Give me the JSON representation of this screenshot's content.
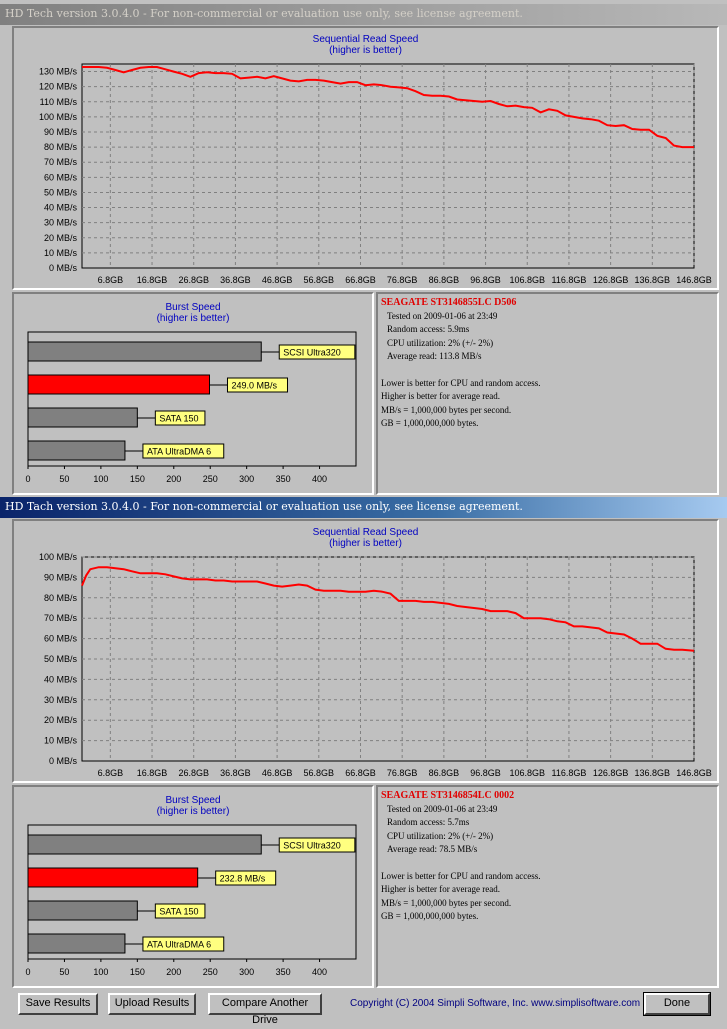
{
  "window1": {
    "title": "HD Tech version 3.0.4.0  - For non-commercial or evaluation use only, see license agreement.",
    "seq_title_1": "Sequential Read Speed",
    "seq_title_2": "(higher is better)",
    "burst_title_1": "Burst Speed",
    "burst_title_2": "(higher is better)",
    "info": {
      "drive": "SEAGATE ST3146855LC D506",
      "tested": "Tested on 2009-01-06 at 23:49",
      "random_access": "Random access: 5.9ms",
      "cpu": "CPU utilization: 2% (+/- 2%)",
      "average_read": "Average read: 113.8 MB/s",
      "note1": "Lower is better for CPU and random access.",
      "note2": "Higher is better for average read.",
      "note3": "MB/s = 1,000,000 bytes per second.",
      "note4": "GB = 1,000,000,000 bytes."
    }
  },
  "window2": {
    "title": "HD Tach version 3.0.4.0  - For non-commercial or evaluation use only, see license agreement.",
    "seq_title_1": "Sequential Read Speed",
    "seq_title_2": "(higher is better)",
    "burst_title_1": "Burst Speed",
    "burst_title_2": "(higher is better)",
    "info": {
      "drive": "SEAGATE ST3146854LC 0002",
      "tested": "Tested on 2009-01-06 at 23:49",
      "random_access": "Random access: 5.7ms",
      "cpu": "CPU utilization: 2% (+/- 2%)",
      "average_read": "Average read: 78.5 MB/s",
      "note1": "Lower is better for CPU and random access.",
      "note2": "Higher is better for average read.",
      "note3": "MB/s = 1,000,000 bytes per second.",
      "note4": "GB = 1,000,000,000 bytes."
    }
  },
  "buttons": {
    "save": "Save Results",
    "upload": "Upload Results",
    "compare": "Compare Another Drive",
    "done": "Done"
  },
  "copyright": "Copyright (C) 2004 Simpli Software, Inc. www.simplisoftware.com",
  "colors": {
    "series": "#ff0000",
    "title_blue": "#0000c0",
    "label_bg": "#ffff80",
    "bar_gray": "#808080",
    "bar_red": "#ff0000"
  },
  "chart_data": [
    {
      "type": "line",
      "title": "Sequential Read Speed",
      "subtitle": "(higher is better)",
      "xlabels": [
        "6.8GB",
        "16.8GB",
        "26.8GB",
        "36.8GB",
        "46.8GB",
        "56.8GB",
        "66.8GB",
        "76.8GB",
        "86.8GB",
        "96.8GB",
        "106.8GB",
        "116.8GB",
        "126.8GB",
        "136.8GB",
        "146.8GB"
      ],
      "yticks": [
        "0 MB/s",
        "10 MB/s",
        "20 MB/s",
        "30 MB/s",
        "40 MB/s",
        "50 MB/s",
        "60 MB/s",
        "70 MB/s",
        "80 MB/s",
        "90 MB/s",
        "100 MB/s",
        "110 MB/s",
        "120 MB/s",
        "130 MB/s"
      ],
      "ylim": [
        0,
        135
      ],
      "xlim": [
        0,
        146.8
      ],
      "grid": true,
      "series": [
        {
          "x": [
            0,
            2,
            4,
            6,
            8,
            10,
            12,
            14,
            16,
            18,
            20,
            22,
            24,
            26,
            28,
            30,
            32,
            34,
            36,
            38,
            40,
            42,
            44,
            46,
            48,
            50,
            52,
            54,
            56,
            58,
            60,
            62,
            64,
            66,
            68,
            70,
            72,
            74,
            76,
            78,
            80,
            82,
            84,
            86,
            88,
            90,
            92,
            94,
            96,
            98,
            100,
            102,
            104,
            106,
            108,
            110,
            112,
            114,
            116,
            118,
            120,
            122,
            124,
            126,
            128,
            130,
            132,
            134,
            136,
            138,
            140,
            142,
            144,
            146.8
          ],
          "y": [
            133,
            133,
            133,
            132.5,
            131,
            129.5,
            131,
            132.5,
            133,
            133,
            131.5,
            130,
            128.5,
            126.5,
            129,
            129.5,
            129,
            129,
            128.5,
            125.5,
            126,
            126.5,
            125.5,
            127,
            125.5,
            124,
            123.5,
            124.5,
            124.5,
            124,
            123,
            122,
            123,
            123,
            121,
            121.5,
            121,
            120,
            119.5,
            119,
            117,
            114.5,
            114,
            114,
            113.5,
            111.5,
            111,
            110.5,
            110,
            110.5,
            108.5,
            107,
            107.5,
            106.5,
            106,
            103,
            105,
            104,
            101,
            100,
            99,
            98.5,
            97.5,
            94.5,
            94,
            94.5,
            92,
            91.5,
            91.5,
            87.5,
            86,
            81,
            80,
            80
          ]
        }
      ]
    },
    {
      "type": "bar",
      "title": "Burst Speed",
      "subtitle": "(higher is better)",
      "categories": [
        "SCSI Ultra320",
        "249.0 MB/s",
        "SATA 150",
        "ATA UltraDMA 6"
      ],
      "values": [
        320,
        249,
        150,
        133
      ],
      "highlight": [
        false,
        true,
        false,
        false
      ],
      "xticks": [
        "0",
        "50",
        "100",
        "150",
        "200",
        "250",
        "300",
        "350",
        "400"
      ],
      "xlim": [
        0,
        450
      ]
    },
    {
      "type": "line",
      "title": "Sequential Read Speed",
      "subtitle": "(higher is better)",
      "xlabels": [
        "6.8GB",
        "16.8GB",
        "26.8GB",
        "36.8GB",
        "46.8GB",
        "56.8GB",
        "66.8GB",
        "76.8GB",
        "86.8GB",
        "96.8GB",
        "106.8GB",
        "116.8GB",
        "126.8GB",
        "136.8GB",
        "146.8GB"
      ],
      "yticks": [
        "0 MB/s",
        "10 MB/s",
        "20 MB/s",
        "30 MB/s",
        "40 MB/s",
        "50 MB/s",
        "60 MB/s",
        "70 MB/s",
        "80 MB/s",
        "90 MB/s",
        "100 MB/s"
      ],
      "ylim": [
        0,
        100
      ],
      "xlim": [
        0,
        146.8
      ],
      "grid": true,
      "series": [
        {
          "x": [
            0,
            1,
            2,
            4,
            6,
            8,
            10,
            12,
            14,
            16,
            18,
            20,
            22,
            24,
            26,
            28,
            30,
            32,
            34,
            36,
            38,
            40,
            42,
            44,
            46,
            48,
            50,
            52,
            54,
            56,
            58,
            60,
            62,
            64,
            66,
            68,
            70,
            72,
            74,
            76,
            78,
            80,
            82,
            84,
            86,
            88,
            90,
            92,
            94,
            96,
            98,
            100,
            102,
            104,
            106,
            108,
            110,
            112,
            114,
            116,
            118,
            120,
            122,
            124,
            126,
            128,
            130,
            132,
            134,
            136,
            138,
            140,
            142,
            144,
            146.8
          ],
          "y": [
            86,
            91,
            94,
            95,
            95,
            94.5,
            94,
            93,
            92,
            92,
            92,
            91.5,
            90.5,
            89.5,
            89,
            89,
            89,
            88.5,
            88.5,
            88,
            88,
            88,
            88,
            87,
            86,
            85.5,
            86,
            86.5,
            86,
            84,
            83.5,
            83.5,
            83.5,
            83,
            83,
            83,
            83.5,
            83,
            82,
            78.5,
            78.5,
            78.5,
            78,
            78,
            77.5,
            77,
            76,
            75.5,
            75,
            74.5,
            73.5,
            73.5,
            73.5,
            72.5,
            70,
            70,
            70,
            69.5,
            68.5,
            68,
            66,
            66,
            65.5,
            65,
            63,
            62.5,
            62,
            60,
            57.5,
            57.5,
            57.5,
            55,
            54.5,
            54.5,
            54
          ]
        }
      ]
    },
    {
      "type": "bar",
      "title": "Burst Speed",
      "subtitle": "(higher is better)",
      "categories": [
        "SCSI Ultra320",
        "232.8 MB/s",
        "SATA 150",
        "ATA UltraDMA 6"
      ],
      "values": [
        320,
        232.8,
        150,
        133
      ],
      "highlight": [
        false,
        true,
        false,
        false
      ],
      "xticks": [
        "0",
        "50",
        "100",
        "150",
        "200",
        "250",
        "300",
        "350",
        "400"
      ],
      "xlim": [
        0,
        450
      ]
    }
  ]
}
